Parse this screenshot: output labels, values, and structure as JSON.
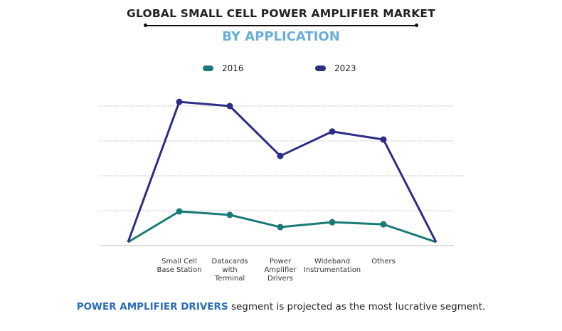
{
  "header": {
    "title": "GLOBAL SMALL CELL POWER AMPLIFIER MARKET",
    "subtitle": "BY APPLICATION"
  },
  "legend": [
    {
      "label": "2016",
      "color": "#1a7a75"
    },
    {
      "label": "2023",
      "color": "#2e2e86"
    }
  ],
  "chart_data": {
    "type": "line",
    "title": "GLOBAL SMALL CELL POWER AMPLIFIER MARKET",
    "subtitle": "BY APPLICATION",
    "categories": [
      "",
      "Small Cell\nBase Station",
      "Datacards\nwith\nTerminal",
      "Power\nAmplifier\nDrivers",
      "Wideband\nInstrumentation",
      "Others",
      ""
    ],
    "series": [
      {
        "name": "2016",
        "color": "#1a7a75",
        "values": [
          0.1,
          0.98,
          0.88,
          0.53,
          0.67,
          0.61,
          0.1
        ]
      },
      {
        "name": "2023",
        "color": "#2e2e86",
        "values": [
          0.1,
          4.12,
          4.0,
          2.57,
          3.27,
          3.04,
          0.1
        ]
      }
    ],
    "ylim": [
      0,
      4
    ],
    "y_ticks_labeled": false,
    "grid": true,
    "legend_position": "top"
  },
  "footer": {
    "highlight": "POWER AMPLIFIER DRIVERS",
    "text": " segment is projected as the most lucrative segment."
  }
}
